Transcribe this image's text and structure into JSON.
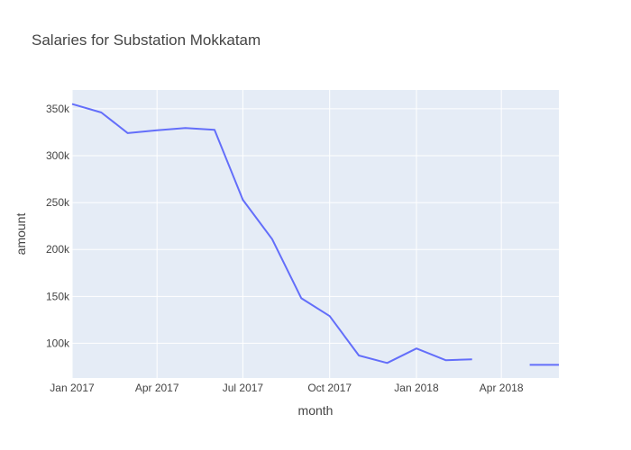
{
  "chart_data": {
    "type": "line",
    "title": "Salaries for Substation Mokkatam",
    "xlabel": "month",
    "ylabel": "amount",
    "xlim": [
      "2017-01-01",
      "2018-06-01"
    ],
    "ylim": [
      63000,
      370000
    ],
    "grid": true,
    "colors": {
      "line": "#636efa",
      "plot_bg": "#e5ecf6",
      "grid": "#ffffff"
    },
    "x_ticks": [
      {
        "value": "2017-01-01",
        "label": "Jan 2017"
      },
      {
        "value": "2017-04-01",
        "label": "Apr 2017"
      },
      {
        "value": "2017-07-01",
        "label": "Jul 2017"
      },
      {
        "value": "2017-10-01",
        "label": "Oct 2017"
      },
      {
        "value": "2018-01-01",
        "label": "Jan 2018"
      },
      {
        "value": "2018-04-01",
        "label": "Apr 2018"
      }
    ],
    "y_ticks": [
      {
        "value": 100000,
        "label": "100k"
      },
      {
        "value": 150000,
        "label": "150k"
      },
      {
        "value": 200000,
        "label": "200k"
      },
      {
        "value": 250000,
        "label": "250k"
      },
      {
        "value": 300000,
        "label": "300k"
      },
      {
        "value": 350000,
        "label": "350k"
      }
    ],
    "series": [
      {
        "x": [
          "2017-01-01",
          "2017-02-01",
          "2017-03-01",
          "2017-04-01",
          "2017-05-01",
          "2017-06-01",
          "2017-07-01",
          "2017-08-01",
          "2017-09-01",
          "2017-10-01",
          "2017-11-01",
          "2017-12-01",
          "2018-01-01",
          "2018-02-01",
          "2018-03-01",
          "2018-04-01",
          "2018-05-01",
          "2018-06-01"
        ],
        "y": [
          355000,
          346000,
          324000,
          327000,
          329500,
          327500,
          253000,
          211000,
          148000,
          129000,
          87000,
          79000,
          94500,
          82000,
          83000,
          null,
          77000,
          77000
        ]
      }
    ]
  }
}
